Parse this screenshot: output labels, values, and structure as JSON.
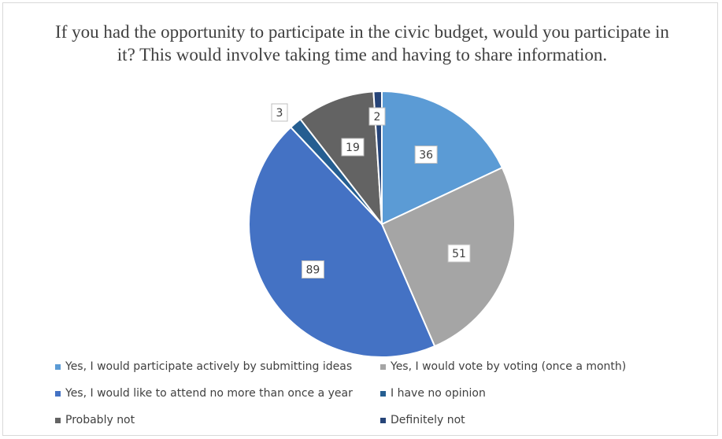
{
  "chart_data": {
    "type": "pie",
    "title": "If you had the opportunity to participate in the civic budget, would you participate in it? This would involve taking time and having to share information.",
    "categories": [
      "Yes, I would participate actively by submitting ideas",
      "Yes, I would vote by voting (once a month)",
      "Yes, I would like to attend no more than once a year",
      "I have no opinion",
      "Probably not",
      "Definitely not"
    ],
    "values": [
      36,
      51,
      89,
      3,
      19,
      2
    ],
    "colors": [
      "#5b9bd5",
      "#a5a5a5",
      "#4472c4",
      "#255e91",
      "#636363",
      "#264478"
    ],
    "legend_position": "bottom",
    "data_labels": true
  }
}
